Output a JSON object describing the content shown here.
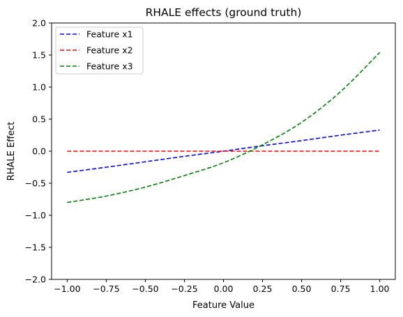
{
  "chart_data": {
    "type": "line",
    "title": "RHALE effects (ground truth)",
    "xlabel": "Feature Value",
    "ylabel": "RHALE Effect",
    "xlim": [
      -1.1,
      1.1
    ],
    "ylim": [
      -2.0,
      2.0
    ],
    "xticks": [
      -1.0,
      -0.75,
      -0.5,
      -0.25,
      0.0,
      0.25,
      0.5,
      0.75,
      1.0
    ],
    "xtick_labels": [
      "−1.00",
      "−0.75",
      "−0.50",
      "−0.25",
      "0.00",
      "0.25",
      "0.50",
      "0.75",
      "1.00"
    ],
    "yticks": [
      -2.0,
      -1.5,
      -1.0,
      -0.5,
      0.0,
      0.5,
      1.0,
      1.5,
      2.0
    ],
    "ytick_labels": [
      "−2.0",
      "−1.5",
      "−1.0",
      "−0.5",
      "0.0",
      "0.5",
      "1.0",
      "1.5",
      "2.0"
    ],
    "grid": false,
    "legend_position": "top-left",
    "x": [
      -1.0,
      -0.75,
      -0.5,
      -0.25,
      0.0,
      0.25,
      0.5,
      0.75,
      1.0
    ],
    "series": [
      {
        "name": "Feature x1",
        "color": "#0000ff",
        "linestyle": "dashed",
        "values": [
          -0.33,
          -0.25,
          -0.165,
          -0.08,
          0.0,
          0.085,
          0.165,
          0.25,
          0.33
        ]
      },
      {
        "name": "Feature x2",
        "color": "#ff0000",
        "linestyle": "dashed",
        "values": [
          0.0,
          0.0,
          0.0,
          0.0,
          0.0,
          0.0,
          0.0,
          0.0,
          0.0
        ]
      },
      {
        "name": "Feature x3",
        "color": "#008000",
        "linestyle": "dashed",
        "values": [
          -0.8,
          -0.7,
          -0.56,
          -0.38,
          -0.18,
          0.1,
          0.45,
          0.93,
          1.54
        ]
      }
    ]
  }
}
